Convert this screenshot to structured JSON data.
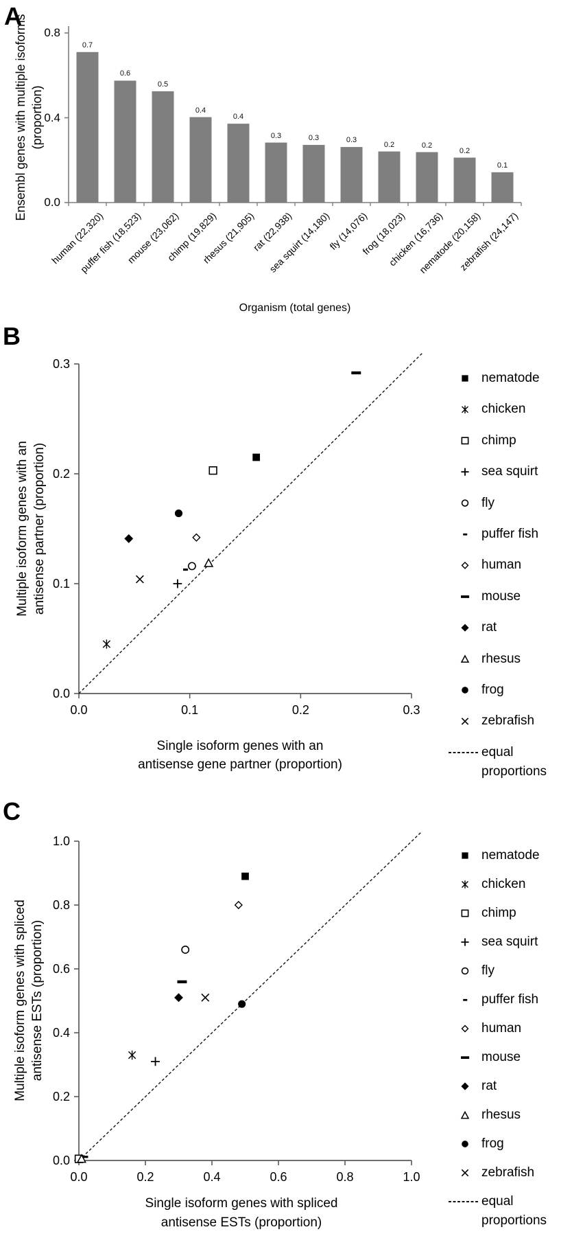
{
  "figure": {
    "panel_labels": [
      "A",
      "B",
      "C"
    ]
  },
  "chart_data": [
    {
      "panel_label": "A",
      "type": "bar",
      "ylabel_lines": [
        "Ensembl genes with multiple isoforms",
        "(proportion)"
      ],
      "xlabel": "Organism (total genes)",
      "categories": [
        "human (22,320)",
        "puffer fish (18,523)",
        "mouse (23,062)",
        "chimp (19,829)",
        "rhesus (21,905)",
        "rat (22,938)",
        "sea squirt (14,180)",
        "fly (14,076)",
        "frog (18,023)",
        "chicken (16,736)",
        "nematode (20,158)",
        "zebrafish (24,147)"
      ],
      "values": [
        0.71,
        0.575,
        0.525,
        0.403,
        0.372,
        0.283,
        0.272,
        0.262,
        0.241,
        0.238,
        0.212,
        0.143
      ],
      "bar_labels": [
        "0.7",
        "0.6",
        "0.5",
        "0.4",
        "0.4",
        "0.3",
        "0.3",
        "0.3",
        "0.2",
        "0.2",
        "0.2",
        "0.1"
      ],
      "ylim": [
        0,
        0.8
      ],
      "yticks": [
        0,
        0.4,
        0.8
      ],
      "ytick_labels": [
        "0.0",
        "0.4",
        "0.8"
      ],
      "grid": false,
      "bar_color": "#7f7f7f"
    },
    {
      "panel_label": "B",
      "type": "scatter",
      "ylabel_lines": [
        "Multiple isoform genes with an",
        "antisense partner (proportion)"
      ],
      "xlabel_lines": [
        "Single isoform genes with an",
        "antisense gene partner (proportion)"
      ],
      "xlim": [
        0,
        0.3
      ],
      "ylim": [
        0,
        0.3
      ],
      "xticks": [
        0,
        0.1,
        0.2,
        0.3
      ],
      "yticks": [
        0,
        0.1,
        0.2,
        0.3
      ],
      "xtick_labels": [
        "0.0",
        "0.1",
        "0.2",
        "0.3"
      ],
      "ytick_labels": [
        "0.0",
        "0.1",
        "0.2",
        "0.3"
      ],
      "grid": false,
      "legend_position": "right",
      "series": [
        {
          "name": "nematode",
          "marker": "filled-square",
          "x": 0.16,
          "y": 0.215
        },
        {
          "name": "chicken",
          "marker": "star",
          "x": 0.025,
          "y": 0.045
        },
        {
          "name": "chimp",
          "marker": "open-square",
          "x": 0.121,
          "y": 0.203
        },
        {
          "name": "sea squirt",
          "marker": "plus",
          "x": 0.089,
          "y": 0.1
        },
        {
          "name": "fly",
          "marker": "open-circle",
          "x": 0.102,
          "y": 0.116
        },
        {
          "name": "puffer fish",
          "marker": "small-dash",
          "x": 0.096,
          "y": 0.113
        },
        {
          "name": "human",
          "marker": "open-diamond",
          "x": 0.106,
          "y": 0.142
        },
        {
          "name": "mouse",
          "marker": "dash",
          "x": 0.25,
          "y": 0.292
        },
        {
          "name": "rat",
          "marker": "filled-diamond",
          "x": 0.045,
          "y": 0.141
        },
        {
          "name": "rhesus",
          "marker": "open-triangle",
          "x": 0.117,
          "y": 0.119
        },
        {
          "name": "frog",
          "marker": "filled-circle",
          "x": 0.09,
          "y": 0.164
        },
        {
          "name": "zebrafish",
          "marker": "x",
          "x": 0.055,
          "y": 0.104
        }
      ],
      "diagonal": {
        "style": "dashed",
        "label_lines": [
          "equal",
          "proportions"
        ]
      }
    },
    {
      "panel_label": "C",
      "type": "scatter",
      "ylabel_lines": [
        "Multiple isoform genes with spliced",
        "antisense ESTs  (proportion)"
      ],
      "xlabel_lines": [
        "Single isoform genes with spliced",
        "antisense ESTs  (proportion)"
      ],
      "xlim": [
        0,
        1.0
      ],
      "ylim": [
        0,
        1.0
      ],
      "xticks": [
        0,
        0.2,
        0.4,
        0.6,
        0.8,
        1.0
      ],
      "yticks": [
        0,
        0.2,
        0.4,
        0.6,
        0.8,
        1.0
      ],
      "xtick_labels": [
        "0.0",
        "0.2",
        "0.4",
        "0.6",
        "0.8",
        "1.0"
      ],
      "ytick_labels": [
        "0.0",
        "0.2",
        "0.4",
        "0.6",
        "0.8",
        "1.0"
      ],
      "grid": false,
      "legend_position": "right",
      "series": [
        {
          "name": "nematode",
          "marker": "filled-square",
          "x": 0.5,
          "y": 0.89
        },
        {
          "name": "chicken",
          "marker": "star",
          "x": 0.16,
          "y": 0.33
        },
        {
          "name": "chimp",
          "marker": "open-square",
          "x": 0.0,
          "y": 0.005
        },
        {
          "name": "sea squirt",
          "marker": "plus",
          "x": 0.23,
          "y": 0.31
        },
        {
          "name": "fly",
          "marker": "open-circle",
          "x": 0.32,
          "y": 0.66
        },
        {
          "name": "puffer fish",
          "marker": "small-dash",
          "x": 0.02,
          "y": 0.012
        },
        {
          "name": "human",
          "marker": "open-diamond",
          "x": 0.48,
          "y": 0.8
        },
        {
          "name": "mouse",
          "marker": "dash",
          "x": 0.31,
          "y": 0.56
        },
        {
          "name": "rat",
          "marker": "filled-diamond",
          "x": 0.3,
          "y": 0.51
        },
        {
          "name": "rhesus",
          "marker": "open-triangle",
          "x": 0.008,
          "y": 0.006
        },
        {
          "name": "frog",
          "marker": "filled-circle",
          "x": 0.49,
          "y": 0.49
        },
        {
          "name": "zebrafish",
          "marker": "x",
          "x": 0.38,
          "y": 0.51
        }
      ],
      "diagonal": {
        "style": "dashed",
        "label_lines": [
          "equal",
          "proportions"
        ]
      }
    }
  ]
}
